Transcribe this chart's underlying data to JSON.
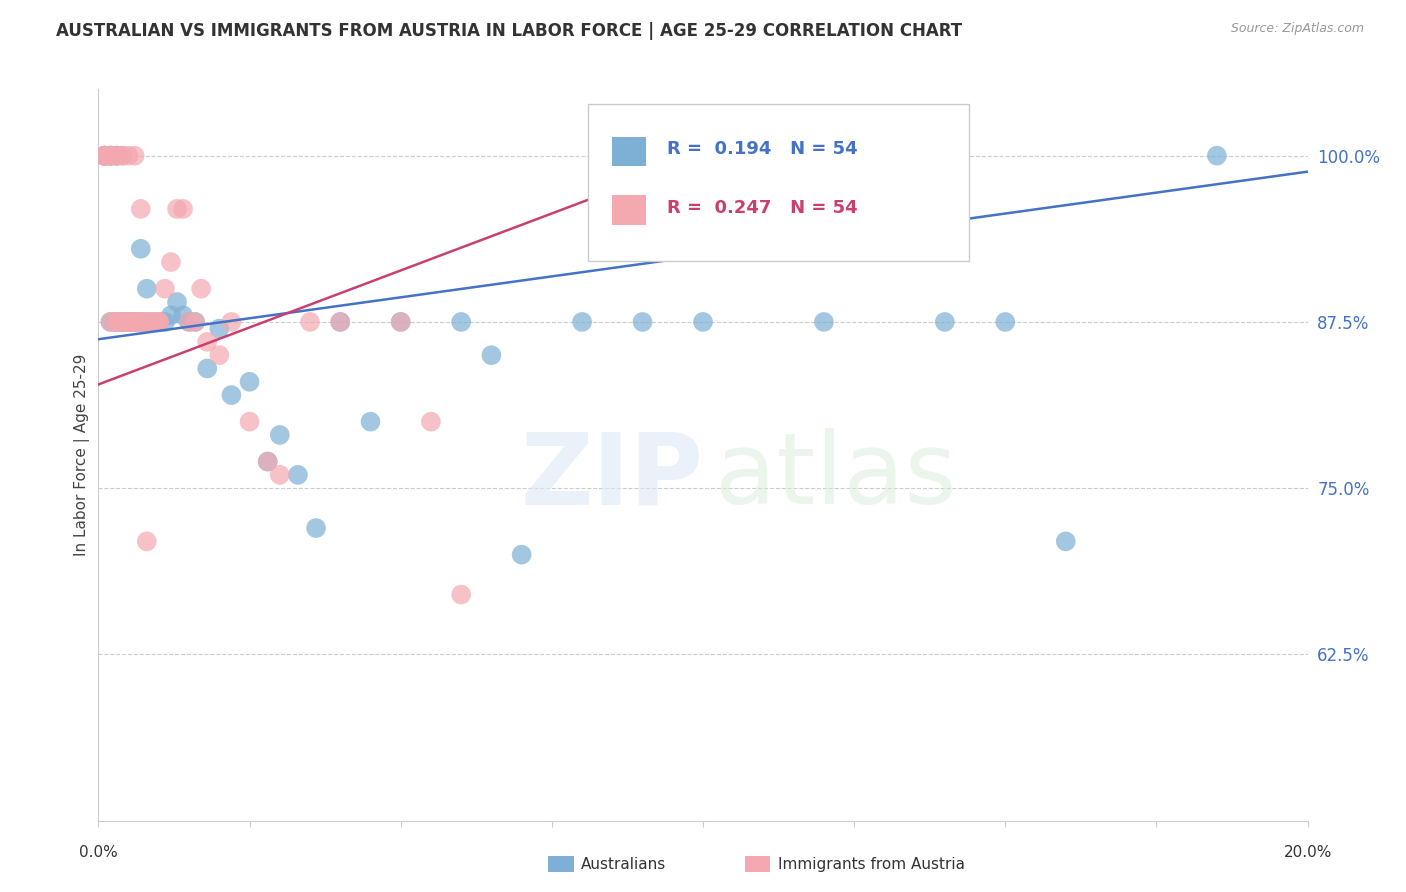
{
  "title": "AUSTRALIAN VS IMMIGRANTS FROM AUSTRIA IN LABOR FORCE | AGE 25-29 CORRELATION CHART",
  "source": "Source: ZipAtlas.com",
  "ylabel": "In Labor Force | Age 25-29",
  "xmin": 0.0,
  "xmax": 0.2,
  "ymin": 0.5,
  "ymax": 1.05,
  "blue_R": 0.194,
  "blue_N": 54,
  "pink_R": 0.247,
  "pink_N": 54,
  "blue_color": "#7EB0D5",
  "pink_color": "#F4A8B0",
  "blue_line_color": "#4472C4",
  "pink_line_color": "#C94070",
  "legend_label_blue": "Australians",
  "legend_label_pink": "Immigrants from Austria",
  "ytick_vals": [
    0.625,
    0.75,
    0.875,
    1.0
  ],
  "ytick_labels": [
    "62.5%",
    "75.0%",
    "87.5%",
    "100.0%"
  ],
  "blue_line_x": [
    0.0,
    0.2
  ],
  "blue_line_y": [
    0.862,
    0.988
  ],
  "pink_line_x": [
    0.0,
    0.105
  ],
  "pink_line_y": [
    0.828,
    1.008
  ],
  "blue_scatter_x": [
    0.001,
    0.001,
    0.001,
    0.002,
    0.002,
    0.002,
    0.002,
    0.003,
    0.003,
    0.003,
    0.003,
    0.003,
    0.004,
    0.004,
    0.004,
    0.005,
    0.005,
    0.005,
    0.006,
    0.006,
    0.007,
    0.007,
    0.008,
    0.008,
    0.009,
    0.01,
    0.011,
    0.012,
    0.013,
    0.014,
    0.015,
    0.016,
    0.018,
    0.02,
    0.022,
    0.025,
    0.028,
    0.03,
    0.033,
    0.036,
    0.04,
    0.045,
    0.05,
    0.06,
    0.065,
    0.07,
    0.08,
    0.09,
    0.1,
    0.12,
    0.14,
    0.16,
    0.185,
    0.15
  ],
  "blue_scatter_y": [
    1.0,
    1.0,
    1.0,
    1.0,
    1.0,
    1.0,
    0.875,
    1.0,
    1.0,
    0.875,
    0.875,
    0.875,
    0.875,
    0.875,
    0.875,
    0.875,
    0.875,
    0.875,
    0.875,
    0.875,
    0.875,
    0.93,
    0.9,
    0.875,
    0.875,
    0.875,
    0.875,
    0.88,
    0.89,
    0.88,
    0.875,
    0.875,
    0.84,
    0.87,
    0.82,
    0.83,
    0.77,
    0.79,
    0.76,
    0.72,
    0.875,
    0.8,
    0.875,
    0.875,
    0.85,
    0.7,
    0.875,
    0.875,
    0.875,
    0.875,
    0.875,
    0.71,
    1.0,
    0.875
  ],
  "pink_scatter_x": [
    0.001,
    0.001,
    0.001,
    0.001,
    0.002,
    0.002,
    0.002,
    0.002,
    0.003,
    0.003,
    0.003,
    0.003,
    0.003,
    0.004,
    0.004,
    0.004,
    0.004,
    0.004,
    0.005,
    0.005,
    0.005,
    0.005,
    0.006,
    0.006,
    0.006,
    0.007,
    0.007,
    0.007,
    0.008,
    0.008,
    0.008,
    0.009,
    0.01,
    0.01,
    0.011,
    0.012,
    0.013,
    0.014,
    0.015,
    0.016,
    0.017,
    0.018,
    0.02,
    0.022,
    0.025,
    0.028,
    0.03,
    0.035,
    0.04,
    0.05,
    0.055,
    0.06,
    0.01,
    0.008
  ],
  "pink_scatter_y": [
    1.0,
    1.0,
    1.0,
    1.0,
    1.0,
    1.0,
    1.0,
    0.875,
    1.0,
    1.0,
    0.875,
    0.875,
    0.875,
    1.0,
    1.0,
    0.875,
    0.875,
    0.875,
    1.0,
    0.875,
    0.875,
    0.875,
    1.0,
    0.875,
    0.875,
    0.96,
    0.875,
    0.875,
    0.875,
    0.875,
    0.875,
    0.875,
    0.875,
    0.875,
    0.9,
    0.92,
    0.96,
    0.96,
    0.875,
    0.875,
    0.9,
    0.86,
    0.85,
    0.875,
    0.8,
    0.77,
    0.76,
    0.875,
    0.875,
    0.875,
    0.8,
    0.67,
    0.875,
    0.71
  ]
}
